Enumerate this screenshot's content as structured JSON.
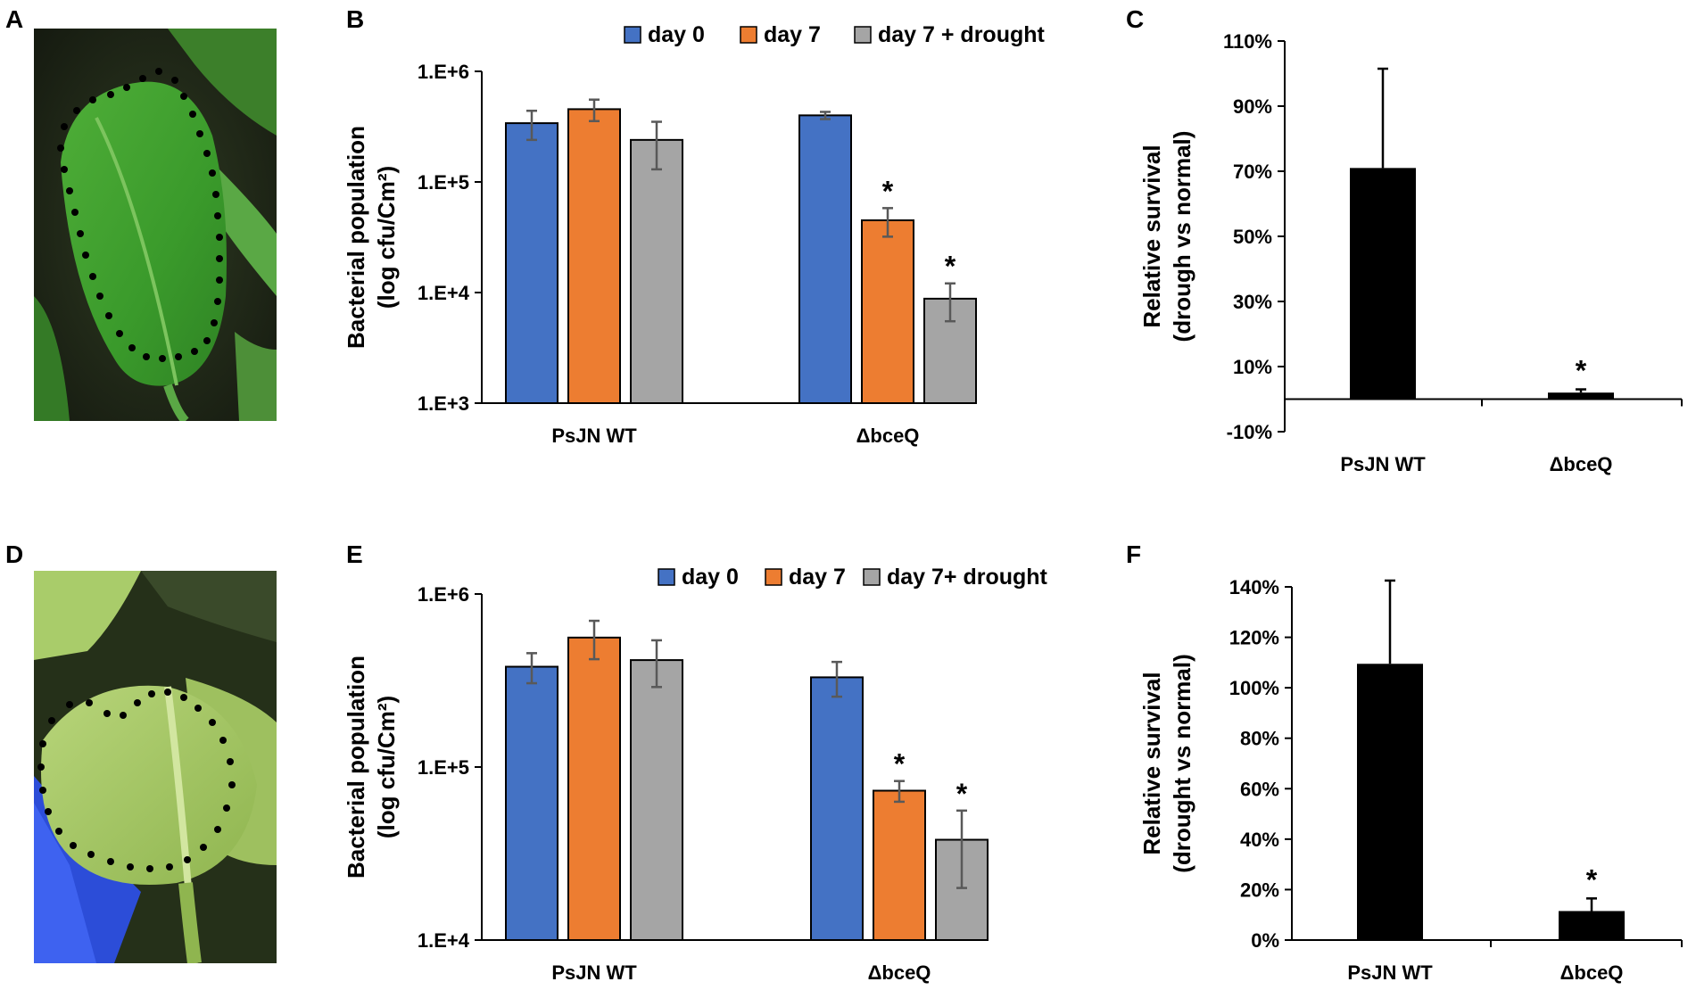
{
  "panels": {
    "a": "A",
    "b": "B",
    "c": "C",
    "d": "D",
    "e": "E",
    "f": "F"
  },
  "photos": {
    "top": {
      "description_icon": "leaf-photo-icon",
      "leaf_color": "#3f9c2e",
      "background_color": "#1f2a17"
    },
    "bottom": {
      "description_icon": "leaf-photo-icon",
      "leaf_color": "#9fc75a",
      "background_color": "#26321a",
      "glove_color": "#2c4dd8"
    }
  },
  "colors": {
    "day0": "#4472c4",
    "day7": "#ed7d31",
    "drought": "#a5a5a5",
    "survival_bar": "#000000",
    "error_bar": "#595959"
  },
  "chart_data": [
    {
      "id": "B",
      "type": "bar",
      "scale": "log",
      "ylabel_line1": "Bacterial population",
      "ylabel_line2": "(log cfu/Cm²)",
      "categories": [
        "PsJN WT",
        "ΔbceQ"
      ],
      "series": [
        {
          "name": "day 0",
          "values": [
            340000,
            400000
          ],
          "errors": [
            100000,
            30000
          ]
        },
        {
          "name": "day 7",
          "values": [
            455000,
            45000
          ],
          "errors": [
            100000,
            13000
          ]
        },
        {
          "name": "day 7 + drought",
          "values": [
            240000,
            8800
          ],
          "errors": [
            110000,
            3300
          ]
        }
      ],
      "significance": [
        [
          "",
          ""
        ],
        [
          "",
          "*"
        ],
        [
          "",
          "*"
        ]
      ],
      "yticks": [
        1000,
        10000,
        100000,
        1000000
      ],
      "ytick_labels": [
        "1.E+3",
        "1.E+4",
        "1.E+5",
        "1.E+6"
      ],
      "ylim": [
        1000,
        1000000
      ]
    },
    {
      "id": "C",
      "type": "bar",
      "ylabel_line1": "Relative survival",
      "ylabel_line2": "(drough vs normal)",
      "categories": [
        "PsJN WT",
        "ΔbceQ"
      ],
      "values": [
        71,
        2
      ],
      "errors": [
        30.5,
        1
      ],
      "significance": [
        "",
        "*"
      ],
      "yticks": [
        -10,
        10,
        30,
        50,
        70,
        90,
        110
      ],
      "ytick_labels": [
        "-10%",
        "10%",
        "30%",
        "50%",
        "70%",
        "90%",
        "110%"
      ],
      "ylim": [
        -10,
        110
      ]
    },
    {
      "id": "E",
      "type": "bar",
      "scale": "log",
      "ylabel_line1": "Bacterial population",
      "ylabel_line2": "(log cfu/Cm²)",
      "categories": [
        "PsJN WT",
        "ΔbceQ"
      ],
      "series": [
        {
          "name": "day 0",
          "values": [
            380000,
            330000
          ],
          "errors": [
            75000,
            75000
          ]
        },
        {
          "name": "day 7",
          "values": [
            560000,
            73000
          ],
          "errors": [
            140000,
            10000
          ]
        },
        {
          "name": "day 7+ drought",
          "values": [
            415000,
            38000
          ],
          "errors": [
            125000,
            18000
          ]
        }
      ],
      "significance": [
        [
          "",
          ""
        ],
        [
          "",
          "*"
        ],
        [
          "",
          "*"
        ]
      ],
      "yticks": [
        10000,
        100000,
        1000000
      ],
      "ytick_labels": [
        "1.E+4",
        "1.E+5",
        "1.E+6"
      ],
      "ylim": [
        10000,
        1000000
      ]
    },
    {
      "id": "F",
      "type": "bar",
      "ylabel_line1": "Relative survival",
      "ylabel_line2": "(drought vs normal)",
      "categories": [
        "PsJN WT",
        "ΔbceQ"
      ],
      "values": [
        109.5,
        11.5
      ],
      "errors": [
        33,
        5
      ],
      "significance": [
        "",
        "*"
      ],
      "yticks": [
        0,
        20,
        40,
        60,
        80,
        100,
        120,
        140
      ],
      "ytick_labels": [
        "0%",
        "20%",
        "40%",
        "60%",
        "80%",
        "100%",
        "120%",
        "140%"
      ],
      "ylim": [
        0,
        140
      ]
    }
  ]
}
